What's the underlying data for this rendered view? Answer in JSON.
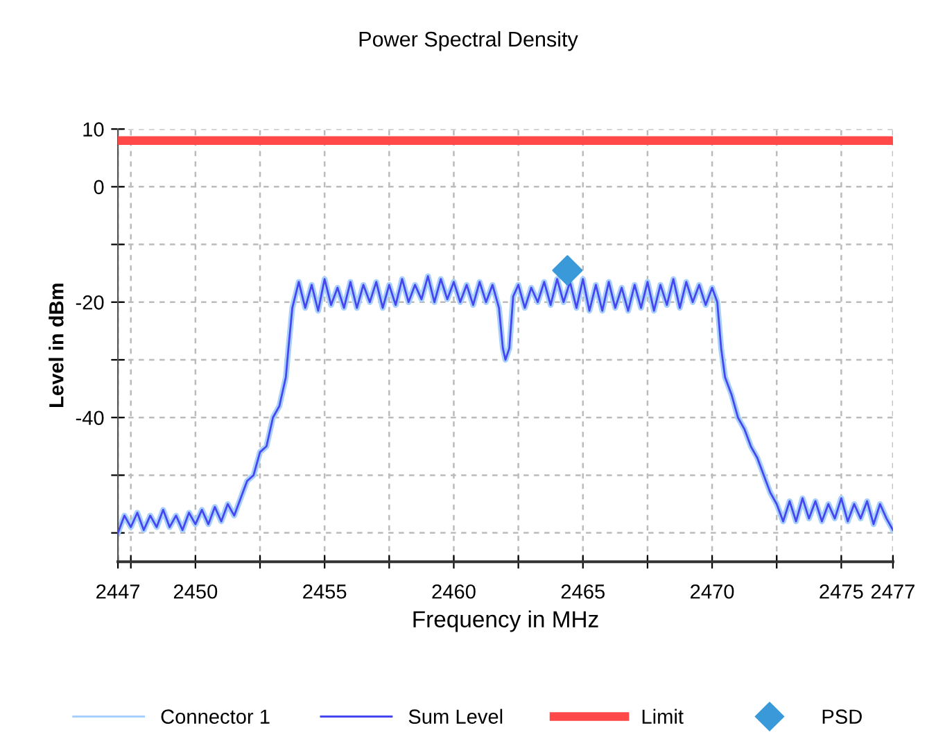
{
  "chart_data": {
    "type": "line",
    "title": "Power Spectral Density",
    "xlabel": "Frequency in MHz",
    "ylabel": "Level in dBm",
    "xlim": [
      2447,
      2477
    ],
    "ylim": [
      -65,
      10
    ],
    "xticks": [
      2447,
      {
        "value": 2447.5,
        "label": null
      },
      2450,
      {
        "value": 2452.5,
        "label": null
      },
      2455,
      {
        "value": 2457.5,
        "label": null
      },
      2460,
      {
        "value": 2462.5,
        "label": null
      },
      2465,
      {
        "value": 2467.5,
        "label": null
      },
      2470,
      {
        "value": 2472.5,
        "label": null
      },
      2475,
      2477
    ],
    "yticks": [
      10,
      0,
      {
        "value": -10,
        "label": null
      },
      -20,
      {
        "value": -30,
        "label": null
      },
      -40,
      {
        "value": -50,
        "label": null
      },
      {
        "value": -60,
        "label": null
      }
    ],
    "grid": true,
    "legend": "bottom",
    "line_style": "solid",
    "x": [
      2447.0,
      2447.25,
      2447.5,
      2447.75,
      2448.0,
      2448.25,
      2448.5,
      2448.75,
      2449.0,
      2449.25,
      2449.5,
      2449.75,
      2450.0,
      2450.25,
      2450.5,
      2450.75,
      2451.0,
      2451.25,
      2451.5,
      2451.75,
      2452.0,
      2452.25,
      2452.5,
      2452.75,
      2453.0,
      2453.25,
      2453.5,
      2453.6,
      2453.75,
      2454.0,
      2454.25,
      2454.5,
      2454.75,
      2455.0,
      2455.25,
      2455.5,
      2455.75,
      2456.0,
      2456.25,
      2456.5,
      2456.75,
      2457.0,
      2457.25,
      2457.5,
      2457.75,
      2458.0,
      2458.25,
      2458.5,
      2458.75,
      2459.0,
      2459.25,
      2459.5,
      2459.75,
      2460.0,
      2460.25,
      2460.5,
      2460.75,
      2461.0,
      2461.25,
      2461.5,
      2461.75,
      2461.9,
      2462.0,
      2462.15,
      2462.3,
      2462.5,
      2462.75,
      2463.0,
      2463.25,
      2463.5,
      2463.75,
      2464.0,
      2464.25,
      2464.5,
      2464.75,
      2465.0,
      2465.25,
      2465.5,
      2465.75,
      2466.0,
      2466.25,
      2466.5,
      2466.75,
      2467.0,
      2467.25,
      2467.5,
      2467.75,
      2468.0,
      2468.25,
      2468.5,
      2468.75,
      2469.0,
      2469.25,
      2469.5,
      2469.75,
      2470.0,
      2470.2,
      2470.35,
      2470.5,
      2470.75,
      2471.0,
      2471.25,
      2471.5,
      2471.75,
      2472.0,
      2472.25,
      2472.5,
      2472.75,
      2473.0,
      2473.25,
      2473.5,
      2473.75,
      2474.0,
      2474.25,
      2474.5,
      2474.75,
      2475.0,
      2475.25,
      2475.5,
      2475.75,
      2476.0,
      2476.25,
      2476.5,
      2476.75,
      2477.0
    ],
    "series": [
      {
        "name": "Connector 1",
        "color": "#a8d0ff",
        "values": [
          -60,
          -57,
          -59,
          -56.5,
          -59.5,
          -57,
          -59,
          -56,
          -59,
          -57,
          -59.5,
          -56.5,
          -58.5,
          -56,
          -58.5,
          -55.5,
          -58,
          -55,
          -57,
          -54,
          -51,
          -50,
          -46,
          -45,
          -40,
          -38,
          -33,
          -28,
          -21,
          -16.5,
          -21,
          -17,
          -21.5,
          -16,
          -20.5,
          -17.5,
          -21,
          -16.5,
          -21,
          -17,
          -20,
          -16.5,
          -21,
          -17,
          -20.5,
          -16,
          -20,
          -17,
          -19.5,
          -15.5,
          -20,
          -16,
          -19.5,
          -16.5,
          -20,
          -17,
          -20.5,
          -16.5,
          -20,
          -17,
          -21,
          -28,
          -30,
          -28,
          -19,
          -17,
          -21,
          -17.5,
          -20,
          -16.5,
          -20.5,
          -16,
          -20,
          -16.5,
          -21,
          -16,
          -21.5,
          -17,
          -21.5,
          -16.5,
          -21,
          -17.5,
          -21.5,
          -17,
          -21,
          -16.5,
          -21.5,
          -17,
          -20.5,
          -16,
          -21,
          -16.5,
          -20,
          -17,
          -20.5,
          -17.5,
          -20,
          -28,
          -33,
          -36,
          -40,
          -42,
          -45,
          -47,
          -50,
          -53,
          -55,
          -58,
          -54.5,
          -58,
          -54,
          -57.5,
          -54.5,
          -58,
          -55,
          -57.5,
          -54,
          -58,
          -55,
          -57.5,
          -54.5,
          -58.5,
          -55,
          -57.5,
          -59.5
        ]
      },
      {
        "name": "Sum Level",
        "color": "#4646f0",
        "values": [
          -60,
          -57,
          -59,
          -56.5,
          -59.5,
          -57,
          -59,
          -56,
          -59,
          -57,
          -59.5,
          -56.5,
          -58.5,
          -56,
          -58.5,
          -55.5,
          -58,
          -55,
          -57,
          -54,
          -51,
          -50,
          -46,
          -45,
          -40,
          -38,
          -33,
          -28,
          -21,
          -16.5,
          -21,
          -17,
          -21.5,
          -16,
          -20.5,
          -17.5,
          -21,
          -16.5,
          -21,
          -17,
          -20,
          -16.5,
          -21,
          -17,
          -20.5,
          -16,
          -20,
          -17,
          -19.5,
          -15.5,
          -20,
          -16,
          -19.5,
          -16.5,
          -20,
          -17,
          -20.5,
          -16.5,
          -20,
          -17,
          -21,
          -28,
          -30,
          -28,
          -19,
          -17,
          -21,
          -17.5,
          -20,
          -16.5,
          -20.5,
          -16,
          -20,
          -16.5,
          -21,
          -16,
          -21.5,
          -17,
          -21.5,
          -16.5,
          -21,
          -17.5,
          -21.5,
          -17,
          -21,
          -16.5,
          -21.5,
          -17,
          -20.5,
          -16,
          -21,
          -16.5,
          -20,
          -17,
          -20.5,
          -17.5,
          -20,
          -28,
          -33,
          -36,
          -40,
          -42,
          -45,
          -47,
          -50,
          -53,
          -55,
          -58,
          -54.5,
          -58,
          -54,
          -57.5,
          -54.5,
          -58,
          -55,
          -57.5,
          -54,
          -58,
          -55,
          -57.5,
          -54.5,
          -58.5,
          -55,
          -57.5,
          -59.5
        ]
      },
      {
        "name": "PSD",
        "type": "scatter",
        "marker": "diamond",
        "color": "#3a9ad9",
        "x": [
          2464.4
        ],
        "values": [
          -14.5
        ]
      }
    ],
    "ref_lines": [
      {
        "axis": "y",
        "value": 8,
        "label": "Limit",
        "color": "#ff4848",
        "line_style": "solid"
      }
    ]
  }
}
